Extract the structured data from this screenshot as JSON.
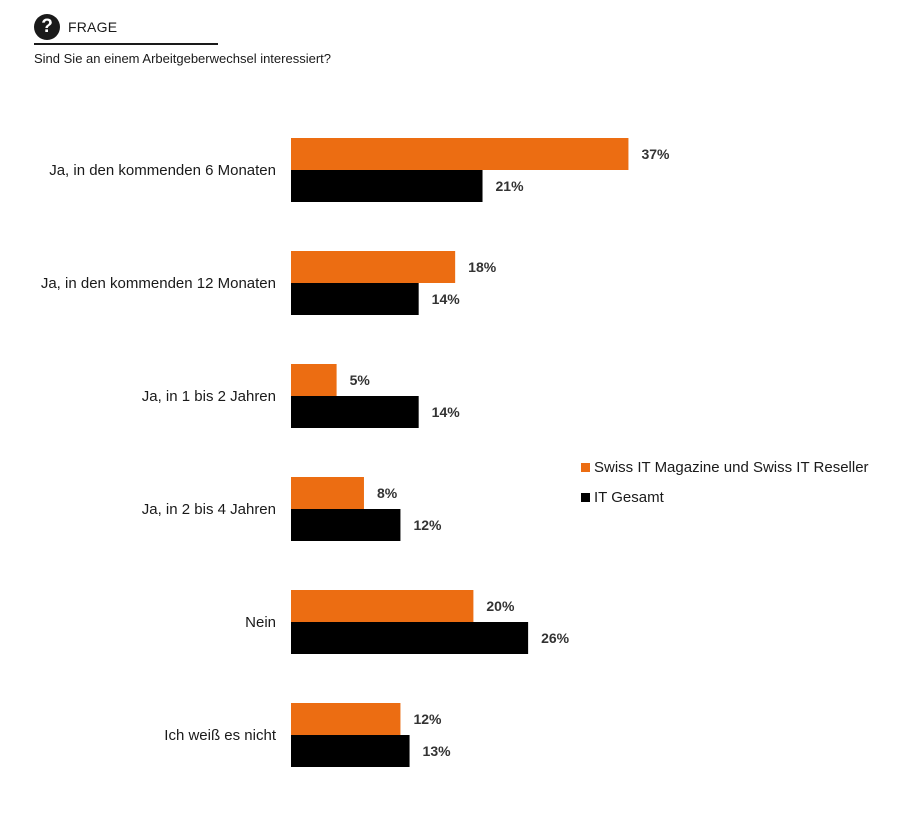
{
  "header": {
    "icon_glyph": "?",
    "label": "FRAGE",
    "question": "Sind Sie an einem Arbeitgeberwechsel interessiert?"
  },
  "colors": {
    "series1": "#EC6D12",
    "series2": "#000000"
  },
  "chart_data": {
    "type": "bar",
    "orientation": "horizontal",
    "categories": [
      "Ja, in den kommenden 6 Monaten",
      "Ja, in den kommenden 12 Monaten",
      "Ja, in 1  bis 2 Jahren",
      "Ja, in 2 bis 4 Jahren",
      "Nein",
      "Ich weiß es nicht"
    ],
    "series": [
      {
        "name": "Swiss IT Magazine und Swiss IT Reseller",
        "color": "#EC6D12",
        "values": [
          37,
          18,
          5,
          8,
          20,
          12
        ],
        "labels": [
          "37%",
          "18%",
          "5%",
          "8%",
          "20%",
          "12%"
        ]
      },
      {
        "name": "IT Gesamt",
        "color": "#000000",
        "values": [
          21,
          14,
          14,
          12,
          26,
          13
        ],
        "labels": [
          "21%",
          "14%",
          "14%",
          "12%",
          "26%",
          "13%"
        ]
      }
    ],
    "unit": "%",
    "legend_position": "right",
    "grid": false
  }
}
